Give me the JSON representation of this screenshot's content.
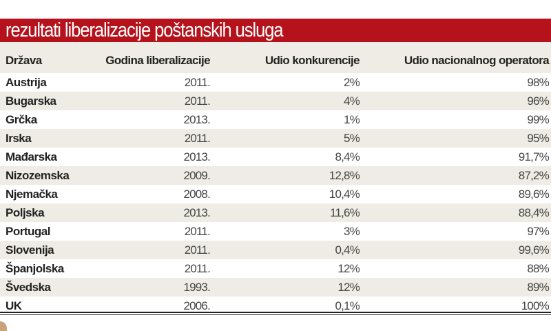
{
  "chart_data": {
    "type": "table",
    "title": "rezultati liberalizacije poštanskih usluga",
    "columns": [
      "Država",
      "Godina liberalizacije",
      "Udio konkurencije",
      "Udio nacionalnog operatora"
    ],
    "rows": [
      [
        "Austrija",
        "2011.",
        "2%",
        "98%"
      ],
      [
        "Bugarska",
        "2011.",
        "4%",
        "96%"
      ],
      [
        "Grčka",
        "2013.",
        "1%",
        "99%"
      ],
      [
        "Irska",
        "2011.",
        "5%",
        "95%"
      ],
      [
        "Mađarska",
        "2013.",
        "8,4%",
        "91,7%"
      ],
      [
        "Nizozemska",
        "2009.",
        "12,8%",
        "87,2%"
      ],
      [
        "Njemačka",
        "2008.",
        "10,4%",
        "89,6%"
      ],
      [
        "Poljska",
        "2013.",
        "11,6%",
        "88,4%"
      ],
      [
        "Portugal",
        "2011.",
        "3%",
        "97%"
      ],
      [
        "Slovenija",
        "2011.",
        "0,4%",
        "99,6%"
      ],
      [
        "Španjolska",
        "2011.",
        "12%",
        "88%"
      ],
      [
        "Švedska",
        "1993.",
        "12%",
        "89%"
      ],
      [
        "UK",
        "2006.",
        "0,1%",
        "100%"
      ]
    ],
    "colors": {
      "title_bar": "#b5121b",
      "stripe": "#eeece4"
    }
  }
}
